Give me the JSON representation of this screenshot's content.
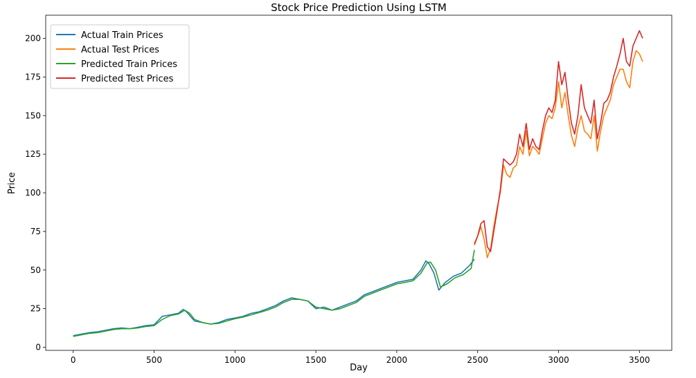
{
  "chart_data": {
    "type": "line",
    "title": "Stock Price Prediction Using LSTM",
    "xlabel": "Day",
    "ylabel": "Price",
    "xlim": [
      -170,
      3700
    ],
    "ylim": [
      -2,
      215
    ],
    "xticks": [
      0,
      500,
      1000,
      1500,
      2000,
      2500,
      3000,
      3500
    ],
    "yticks": [
      0,
      25,
      50,
      75,
      100,
      125,
      150,
      175,
      200
    ],
    "grid": false,
    "legend_position": "top-left",
    "series": [
      {
        "name": "Actual Train Prices",
        "color": "#1f77b4",
        "x": [
          0,
          50,
          100,
          150,
          200,
          250,
          300,
          350,
          400,
          450,
          500,
          550,
          600,
          650,
          680,
          700,
          750,
          800,
          850,
          900,
          950,
          1000,
          1050,
          1100,
          1150,
          1200,
          1250,
          1300,
          1350,
          1400,
          1450,
          1500,
          1550,
          1600,
          1650,
          1700,
          1750,
          1800,
          1850,
          1900,
          1950,
          2000,
          2050,
          2100,
          2150,
          2180,
          2200,
          2230,
          2260,
          2300,
          2350,
          2400,
          2450,
          2480
        ],
        "y": [
          7.5,
          8.5,
          9.5,
          10,
          11,
          12,
          12.5,
          12,
          13,
          14,
          14.5,
          20,
          21,
          22,
          24.5,
          23,
          17,
          16,
          15,
          16,
          18,
          19,
          20,
          22,
          23,
          25,
          27,
          30,
          32,
          31,
          30,
          25,
          26,
          24,
          26,
          28,
          30,
          34,
          36,
          38,
          40,
          42,
          43,
          44,
          50,
          56,
          54,
          48,
          37,
          42,
          46,
          48,
          53,
          57
        ]
      },
      {
        "name": "Actual Test Prices",
        "color": "#ff7f0e",
        "x": [
          2480,
          2500,
          2520,
          2540,
          2560,
          2580,
          2600,
          2620,
          2640,
          2660,
          2680,
          2700,
          2720,
          2740,
          2760,
          2780,
          2800,
          2820,
          2840,
          2860,
          2880,
          2900,
          2920,
          2940,
          2960,
          2980,
          3000,
          3020,
          3040,
          3060,
          3080,
          3100,
          3120,
          3140,
          3160,
          3180,
          3200,
          3220,
          3240,
          3260,
          3280,
          3300,
          3320,
          3340,
          3360,
          3380,
          3400,
          3420,
          3440,
          3460,
          3480,
          3500,
          3520
        ],
        "y": [
          66,
          72,
          78,
          70,
          58,
          64,
          78,
          90,
          100,
          118,
          112,
          110,
          116,
          118,
          130,
          125,
          140,
          124,
          130,
          128,
          125,
          135,
          145,
          150,
          148,
          155,
          172,
          155,
          165,
          150,
          137,
          130,
          142,
          150,
          140,
          138,
          135,
          150,
          127,
          140,
          150,
          155,
          160,
          170,
          175,
          180,
          180,
          172,
          168,
          185,
          192,
          190,
          185
        ]
      },
      {
        "name": "Predicted Train Prices",
        "color": "#2ca02c",
        "x": [
          0,
          50,
          100,
          150,
          200,
          250,
          300,
          350,
          400,
          450,
          500,
          550,
          600,
          650,
          690,
          720,
          750,
          800,
          850,
          900,
          950,
          1000,
          1050,
          1100,
          1150,
          1200,
          1250,
          1300,
          1350,
          1400,
          1450,
          1500,
          1550,
          1600,
          1650,
          1700,
          1750,
          1800,
          1850,
          1900,
          1950,
          2000,
          2050,
          2100,
          2150,
          2190,
          2210,
          2240,
          2270,
          2310,
          2360,
          2410,
          2460,
          2480
        ],
        "y": [
          7,
          8,
          9,
          9.5,
          10.5,
          11.5,
          12,
          12,
          12.5,
          13.5,
          14,
          18,
          20.5,
          21.5,
          24,
          22,
          18,
          16,
          15,
          15.5,
          17,
          18.5,
          19.5,
          21,
          22.5,
          24,
          26,
          29,
          31,
          31,
          30,
          26,
          25,
          24,
          25,
          27,
          29,
          33,
          35,
          37,
          39,
          41,
          42,
          43,
          48,
          55,
          55,
          50,
          39,
          41,
          45,
          47,
          51,
          63
        ]
      },
      {
        "name": "Predicted Test Prices",
        "color": "#d62728",
        "x": [
          2480,
          2500,
          2520,
          2540,
          2560,
          2580,
          2600,
          2620,
          2640,
          2660,
          2680,
          2700,
          2720,
          2740,
          2760,
          2780,
          2800,
          2820,
          2840,
          2860,
          2880,
          2900,
          2920,
          2940,
          2960,
          2980,
          3000,
          3020,
          3040,
          3060,
          3080,
          3100,
          3120,
          3140,
          3160,
          3180,
          3200,
          3220,
          3240,
          3260,
          3280,
          3300,
          3320,
          3340,
          3360,
          3380,
          3400,
          3420,
          3440,
          3460,
          3480,
          3500,
          3520
        ],
        "y": [
          67,
          72,
          80,
          82,
          65,
          62,
          75,
          88,
          102,
          122,
          120,
          118,
          120,
          125,
          138,
          130,
          145,
          128,
          135,
          130,
          128,
          140,
          150,
          155,
          152,
          160,
          185,
          170,
          178,
          160,
          145,
          138,
          150,
          170,
          155,
          150,
          145,
          160,
          135,
          145,
          158,
          160,
          165,
          175,
          182,
          190,
          200,
          185,
          182,
          195,
          200,
          205,
          200
        ]
      }
    ]
  }
}
